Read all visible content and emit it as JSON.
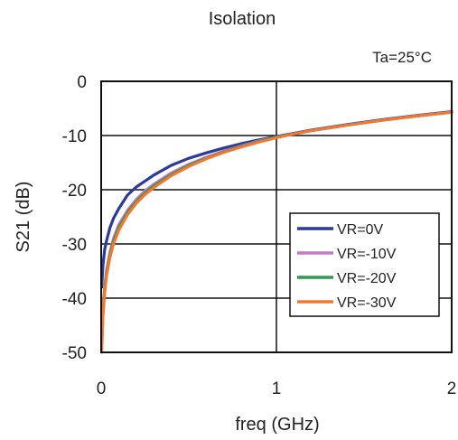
{
  "chart_data": {
    "type": "line",
    "title": "Isolation",
    "annotation": "Ta=25°C",
    "xlabel": "freq (GHz)",
    "ylabel": "S21 (dB)",
    "xlim": [
      0,
      2
    ],
    "ylim": [
      -50,
      0
    ],
    "x_ticks": [
      "0",
      "1",
      "2"
    ],
    "y_ticks": [
      "0",
      "-10",
      "-20",
      "-30",
      "-40",
      "-50"
    ],
    "grid": true,
    "legend_position": "lower-right",
    "series": [
      {
        "name": "VR=0V",
        "color": "#2c3a9c",
        "x": [
          0.003,
          0.01,
          0.02,
          0.03,
          0.05,
          0.07,
          0.1,
          0.15,
          0.2,
          0.25,
          0.3,
          0.4,
          0.5,
          0.6,
          0.7,
          0.8,
          0.9,
          1.0,
          1.1,
          1.2,
          1.4,
          1.6,
          1.8,
          2.0
        ],
        "values": [
          -38,
          -34,
          -31,
          -29.5,
          -27,
          -25.3,
          -23.5,
          -21,
          -19.5,
          -18.4,
          -17.3,
          -15.5,
          -14.2,
          -13.2,
          -12.3,
          -11.5,
          -10.8,
          -10.2,
          -9.6,
          -9.0,
          -8.0,
          -7.1,
          -6.3,
          -5.6
        ]
      },
      {
        "name": "VR=-10V",
        "color": "#c678c8",
        "x": [
          0.003,
          0.01,
          0.02,
          0.03,
          0.05,
          0.07,
          0.1,
          0.15,
          0.2,
          0.25,
          0.3,
          0.4,
          0.5,
          0.6,
          0.7,
          0.8,
          0.9,
          1.0,
          1.1,
          1.2,
          1.4,
          1.6,
          1.8,
          2.0
        ],
        "values": [
          -49,
          -42,
          -38,
          -35,
          -31.5,
          -29,
          -26.5,
          -23.8,
          -21.8,
          -20.2,
          -19,
          -16.9,
          -15.3,
          -14,
          -12.9,
          -11.9,
          -11.0,
          -10.3,
          -9.7,
          -9.1,
          -8.1,
          -7.2,
          -6.4,
          -5.7
        ]
      },
      {
        "name": "VR=-20V",
        "color": "#2e9a4a",
        "x": [
          0.003,
          0.01,
          0.02,
          0.03,
          0.05,
          0.07,
          0.1,
          0.15,
          0.2,
          0.25,
          0.3,
          0.4,
          0.5,
          0.6,
          0.7,
          0.8,
          0.9,
          1.0,
          1.1,
          1.2,
          1.4,
          1.6,
          1.8,
          2.0
        ],
        "values": [
          -49.5,
          -43,
          -38.5,
          -35.5,
          -32,
          -29.5,
          -27,
          -24.2,
          -22.2,
          -20.6,
          -19.3,
          -17.2,
          -15.5,
          -14.2,
          -13.0,
          -12.0,
          -11.1,
          -10.3,
          -9.7,
          -9.1,
          -8.1,
          -7.2,
          -6.4,
          -5.7
        ]
      },
      {
        "name": "VR=-30V",
        "color": "#f07830",
        "x": [
          0.003,
          0.01,
          0.02,
          0.03,
          0.05,
          0.07,
          0.1,
          0.15,
          0.2,
          0.25,
          0.3,
          0.4,
          0.5,
          0.6,
          0.7,
          0.8,
          0.9,
          1.0,
          1.1,
          1.2,
          1.4,
          1.6,
          1.8,
          2.0
        ],
        "values": [
          -50,
          -43.5,
          -39,
          -36,
          -32.5,
          -30,
          -27.5,
          -24.6,
          -22.5,
          -20.9,
          -19.6,
          -17.4,
          -15.7,
          -14.3,
          -13.1,
          -12.1,
          -11.2,
          -10.4,
          -9.7,
          -9.1,
          -8.1,
          -7.2,
          -6.4,
          -5.7
        ]
      }
    ]
  }
}
